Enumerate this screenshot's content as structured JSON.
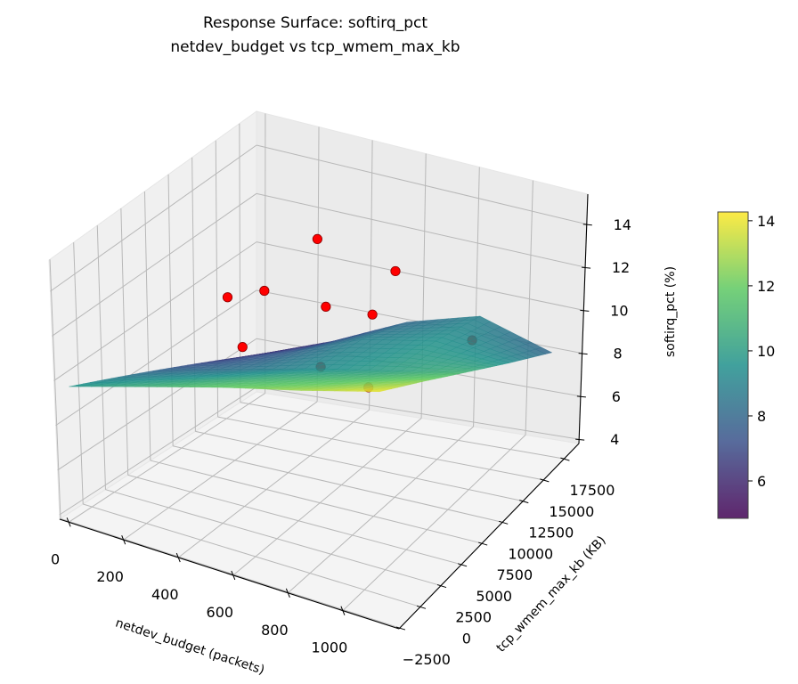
{
  "chart_data": {
    "type": "surface3d",
    "title": [
      "Response Surface: softirq_pct",
      "netdev_budget vs tcp_wmem_max_kb"
    ],
    "xlabel": "netdev_budget (packets)",
    "ylabel": "tcp_wmem_max_kb (KB)",
    "zlabel": "softirq_pct (%)",
    "xlim": [
      -33,
      1205
    ],
    "ylim": [
      -2600,
      19300
    ],
    "zlim": [
      3.8,
      15.4
    ],
    "xticks": [
      0,
      200,
      400,
      600,
      800,
      1000
    ],
    "yticks": [
      -2500,
      0,
      2500,
      5000,
      7500,
      10000,
      12500,
      15000,
      17500
    ],
    "zticks": [
      4,
      6,
      8,
      10,
      12,
      14
    ],
    "grid": true,
    "colormap": "viridis",
    "colorbar": {
      "range": [
        4.85,
        14.27
      ],
      "ticks": [
        6,
        8,
        10,
        12,
        14
      ],
      "placement": "right"
    },
    "surface": {
      "x": [
        0,
        275,
        550,
        825,
        1100
      ],
      "y": [
        -2000,
        3250,
        8500,
        13750,
        19000
      ],
      "z": [
        [
          9.7,
          10.8,
          11.9,
          12.9,
          14.0
        ],
        [
          8.65,
          9.6,
          10.6,
          11.5,
          12.5
        ],
        [
          7.6,
          8.4,
          9.3,
          10.1,
          10.95
        ],
        [
          6.55,
          7.6,
          8.9,
          9.6,
          9.4
        ],
        [
          5.5,
          6.6,
          8.0,
          8.9,
          7.9
        ]
      ]
    },
    "scatter": {
      "color": "#ff0000",
      "points": [
        {
          "x": 333,
          "y": 15280,
          "z": 12.2
        },
        {
          "x": 696,
          "y": 13020,
          "z": 12.6
        },
        {
          "x": 152,
          "y": 10760,
          "z": 10.5
        },
        {
          "x": 212,
          "y": 13020,
          "z": 10.3
        },
        {
          "x": 514,
          "y": 10760,
          "z": 11.2
        },
        {
          "x": 756,
          "y": 8500,
          "z": 12.4
        },
        {
          "x": 430,
          "y": 3980,
          "z": 11.3
        },
        {
          "x": 860,
          "y": 17000,
          "z": 8.6
        },
        {
          "x": 272,
          "y": 17540,
          "z": 5.9
        },
        {
          "x": 454,
          "y": 17540,
          "z": 5.4
        }
      ]
    }
  }
}
